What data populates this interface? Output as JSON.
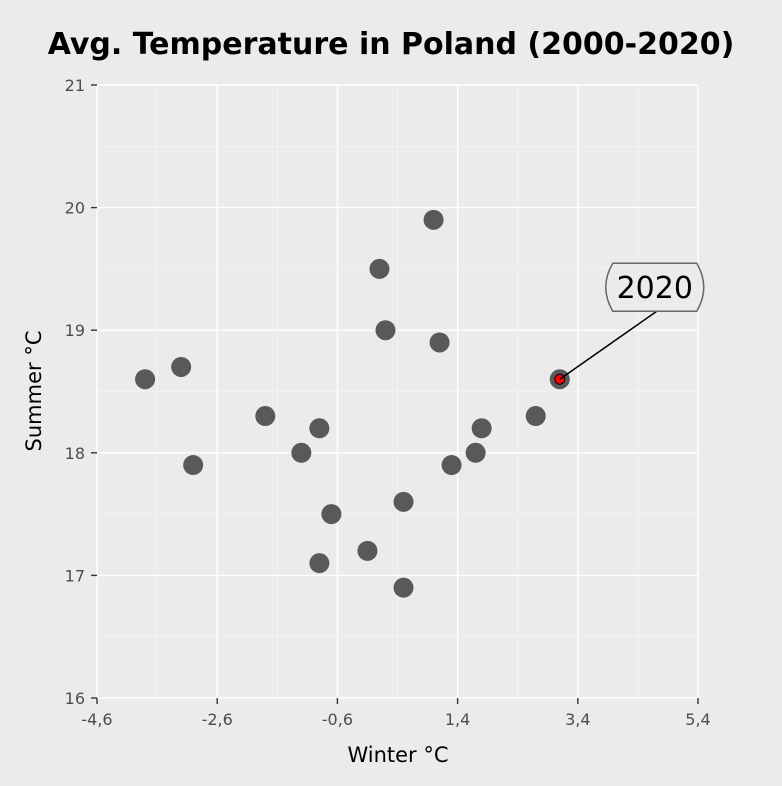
{
  "chart_data": {
    "type": "scatter",
    "title": "Avg. Temperature in Poland (2000-2020)",
    "xlabel": "Winter °C",
    "ylabel": "Summer °C",
    "xlim": [
      -4.6,
      5.4
    ],
    "ylim": [
      16,
      21
    ],
    "xticks": [
      -4.6,
      -2.6,
      -0.6,
      1.4,
      3.4,
      5.4
    ],
    "xtick_labels": [
      "-4,6",
      "-2,6",
      "-0,6",
      "1,4",
      "3,4",
      "5,4"
    ],
    "yticks": [
      16,
      17,
      18,
      19,
      20,
      21
    ],
    "ytick_labels": [
      "16",
      "17",
      "18",
      "19",
      "20",
      "21"
    ],
    "grid": true,
    "point_color": "#595959",
    "highlight_color": "#ff0000",
    "points": [
      {
        "x": -3.8,
        "y": 18.6
      },
      {
        "x": -3.2,
        "y": 18.7
      },
      {
        "x": -3.0,
        "y": 17.9
      },
      {
        "x": -1.8,
        "y": 18.3
      },
      {
        "x": -1.2,
        "y": 18.0
      },
      {
        "x": -0.9,
        "y": 18.2
      },
      {
        "x": -0.7,
        "y": 17.5
      },
      {
        "x": -0.9,
        "y": 17.1
      },
      {
        "x": -0.1,
        "y": 17.2
      },
      {
        "x": 0.1,
        "y": 19.5
      },
      {
        "x": 0.2,
        "y": 19.0
      },
      {
        "x": 0.5,
        "y": 17.6
      },
      {
        "x": 0.5,
        "y": 16.9
      },
      {
        "x": 1.0,
        "y": 19.9
      },
      {
        "x": 1.1,
        "y": 18.9
      },
      {
        "x": 1.3,
        "y": 17.9
      },
      {
        "x": 1.7,
        "y": 18.0
      },
      {
        "x": 1.8,
        "y": 18.2
      },
      {
        "x": 2.7,
        "y": 18.3
      },
      {
        "x": 3.1,
        "y": 18.6,
        "label": "2020",
        "highlight": true
      }
    ]
  }
}
